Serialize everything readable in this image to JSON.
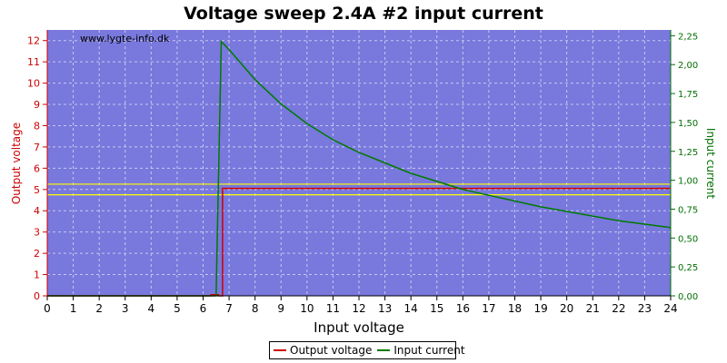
{
  "chart_data": {
    "type": "line",
    "title": "Voltage sweep 2.4A #2 input current",
    "watermark": "www.lygte-info.dk",
    "xlabel": "Input voltage",
    "ylabel_left": "Output voltage",
    "ylabel_right": "Input current",
    "xlim": [
      0,
      24
    ],
    "ylim_left": [
      0,
      12.5
    ],
    "ylim_right": [
      0,
      2.3
    ],
    "x_ticks": [
      "0",
      "1",
      "2",
      "3",
      "4",
      "5",
      "6",
      "7",
      "8",
      "9",
      "10",
      "11",
      "12",
      "13",
      "14",
      "15",
      "16",
      "17",
      "18",
      "19",
      "20",
      "21",
      "22",
      "23",
      "24"
    ],
    "y_left_ticks": [
      "0",
      "1",
      "2",
      "3",
      "4",
      "5",
      "6",
      "7",
      "8",
      "9",
      "10",
      "11",
      "12"
    ],
    "y_right_ticks": [
      "0,00",
      "0,25",
      "0,50",
      "0,75",
      "1,00",
      "1,25",
      "1,50",
      "1,75",
      "2,00",
      "2,25"
    ],
    "plot_background": "#7878dd",
    "grid": true,
    "legend_position": "bottom-center",
    "reference_lines_left": [
      {
        "y": 5.25,
        "color": "#ffff00"
      },
      {
        "y": 4.75,
        "color": "#ffff00"
      }
    ],
    "series": [
      {
        "name": "Output voltage",
        "axis": "left",
        "color": "#cc0000",
        "points": [
          [
            0,
            0
          ],
          [
            6.3,
            0
          ],
          [
            6.3,
            0.05
          ],
          [
            6.6,
            0.05
          ],
          [
            6.6,
            0
          ],
          [
            6.75,
            0
          ],
          [
            6.75,
            5.05
          ],
          [
            24,
            5.05
          ]
        ]
      },
      {
        "name": "Input current",
        "axis": "right",
        "color": "#007a00",
        "points": [
          [
            0,
            0
          ],
          [
            6.5,
            0
          ],
          [
            6.7,
            2.2
          ],
          [
            7,
            2.13
          ],
          [
            8,
            1.87
          ],
          [
            9,
            1.66
          ],
          [
            10,
            1.49
          ],
          [
            11,
            1.35
          ],
          [
            12,
            1.24
          ],
          [
            13,
            1.15
          ],
          [
            14,
            1.06
          ],
          [
            15,
            0.99
          ],
          [
            16,
            0.92
          ],
          [
            17,
            0.87
          ],
          [
            18,
            0.82
          ],
          [
            19,
            0.77
          ],
          [
            20,
            0.73
          ],
          [
            21,
            0.69
          ],
          [
            22,
            0.65
          ],
          [
            23,
            0.62
          ],
          [
            24,
            0.59
          ]
        ]
      }
    ]
  }
}
